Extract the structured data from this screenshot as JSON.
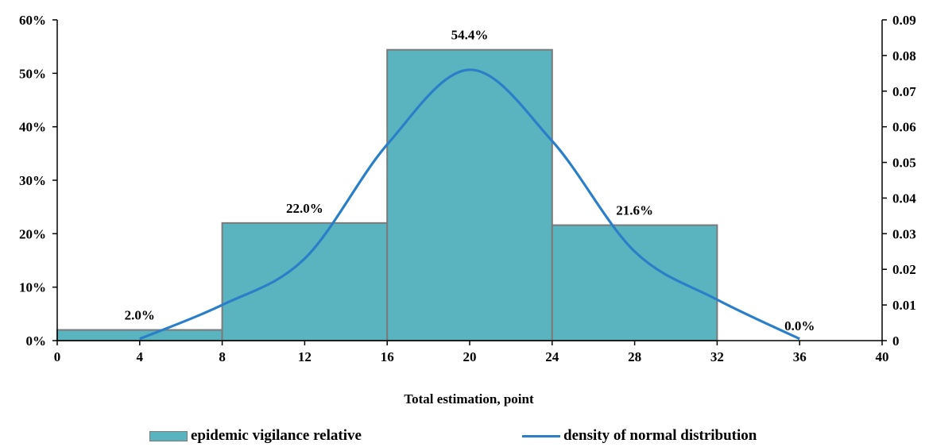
{
  "chart_data": {
    "type": "bar",
    "xlabel": "Total estimation, point",
    "x_ticks": [
      "0",
      "4",
      "8",
      "12",
      "16",
      "20",
      "24",
      "28",
      "32",
      "36",
      "40"
    ],
    "xlim": [
      0,
      40
    ],
    "ylim_left": [
      0,
      60
    ],
    "y_left_ticks": [
      "0%",
      "10%",
      "20%",
      "30%",
      "40%",
      "50%",
      "60%"
    ],
    "ylim_right": [
      0,
      0.09
    ],
    "y_right_ticks": [
      "0",
      "0.01",
      "0.02",
      "0.03",
      "0.04",
      "0.05",
      "0.06",
      "0.07",
      "0.08",
      "0.09"
    ],
    "bars": {
      "name": "epidemic vigilance relative",
      "color": "#5ab4bf",
      "bins": [
        {
          "from": 0,
          "to": 8,
          "value": 2.0,
          "label": "2.0%"
        },
        {
          "from": 8,
          "to": 16,
          "value": 22.0,
          "label": "22.0%"
        },
        {
          "from": 16,
          "to": 24,
          "value": 54.4,
          "label": "54.4%"
        },
        {
          "from": 24,
          "to": 32,
          "value": 21.6,
          "label": "21.6%"
        },
        {
          "from": 32,
          "to": 40,
          "value": 0.0,
          "label": "0.0%"
        }
      ]
    },
    "line": {
      "name": "density of normal distribution",
      "color": "#2a7fc8",
      "points": [
        [
          4,
          0.0005
        ],
        [
          8,
          0.01
        ],
        [
          12,
          0.023
        ],
        [
          16,
          0.055
        ],
        [
          20,
          0.076
        ],
        [
          24,
          0.056
        ],
        [
          28,
          0.025
        ],
        [
          32,
          0.0115
        ],
        [
          36,
          0.0005
        ]
      ]
    },
    "legend_position": "bottom"
  },
  "legend": {
    "bar_label": "epidemic vigilance relative",
    "line_label": "density of normal distribution"
  }
}
